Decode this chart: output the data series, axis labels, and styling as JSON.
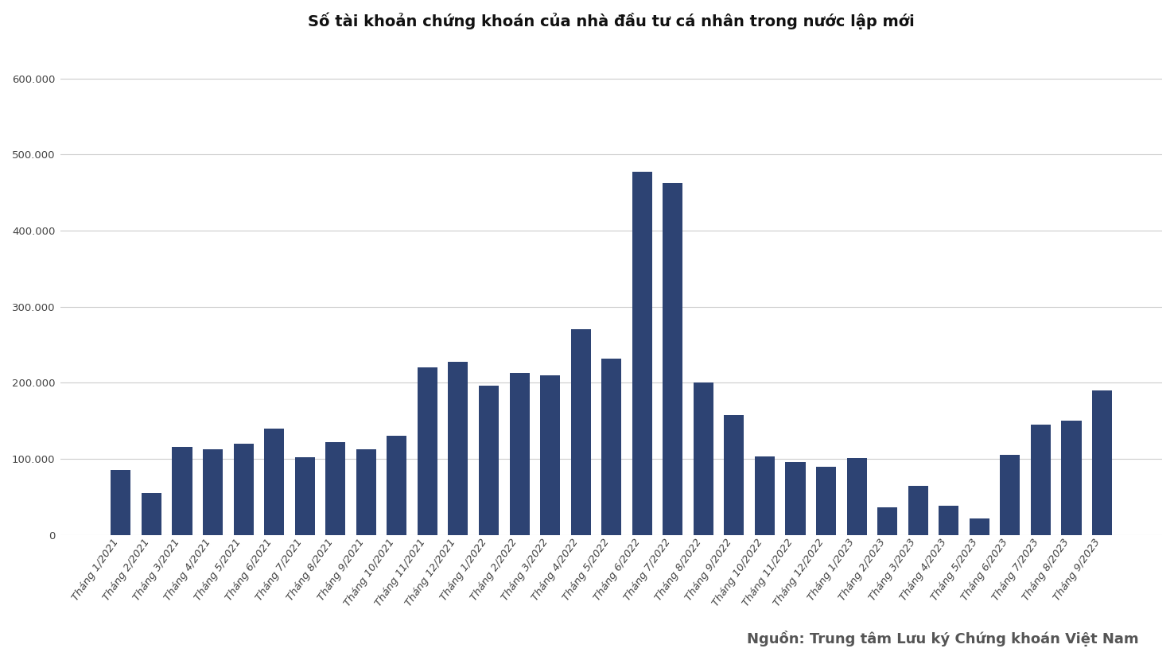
{
  "title": "Số tài khoản chứng khoán của nhà đầu tư cá nhân trong nước lập mới",
  "source": "Nguồn: Trung tâm Lưu ký Chứng khoán Việt Nam",
  "bar_color": "#2d4373",
  "background_color": "#ffffff",
  "grid_color": "#cccccc",
  "categories": [
    "Tháng 1/2021",
    "Tháng 2/2021",
    "Tháng 3/2021",
    "Tháng 4/2021",
    "Tháng 5/2021",
    "Tháng 6/2021",
    "Tháng 7/2021",
    "Tháng 8/2021",
    "Tháng 9/2021",
    "Tháng 10/2021",
    "Tháng 11/2021",
    "Tháng 12/2021",
    "Tháng 1/2022",
    "Tháng 2/2022",
    "Tháng 3/2022",
    "Tháng 4/2022",
    "Tháng 5/2022",
    "Tháng 6/2022",
    "Tháng 7/2022",
    "Tháng 8/2022",
    "Tháng 9/2022",
    "Tháng 10/2022",
    "Tháng 11/2022",
    "Tháng 12/2022",
    "Tháng 1/2023",
    "Tháng 2/2023",
    "Tháng 3/2023",
    "Tháng 4/2023",
    "Tháng 5/2023",
    "Tháng 6/2023",
    "Tháng 7/2023",
    "Tháng 8/2023",
    "Tháng 9/2023"
  ],
  "values": [
    85000,
    55000,
    116000,
    113000,
    120000,
    140000,
    102000,
    122000,
    113000,
    130000,
    220000,
    228000,
    196000,
    213000,
    210000,
    270000,
    232000,
    477000,
    463000,
    200000,
    157000,
    103000,
    96000,
    90000,
    101000,
    36000,
    65000,
    38000,
    22000,
    105000,
    145000,
    150000,
    190000
  ],
  "ylim": [
    0,
    640000
  ],
  "yticks": [
    0,
    100000,
    200000,
    300000,
    400000,
    500000,
    600000
  ],
  "title_fontsize": 14,
  "tick_fontsize": 9.5,
  "source_fontsize": 13
}
